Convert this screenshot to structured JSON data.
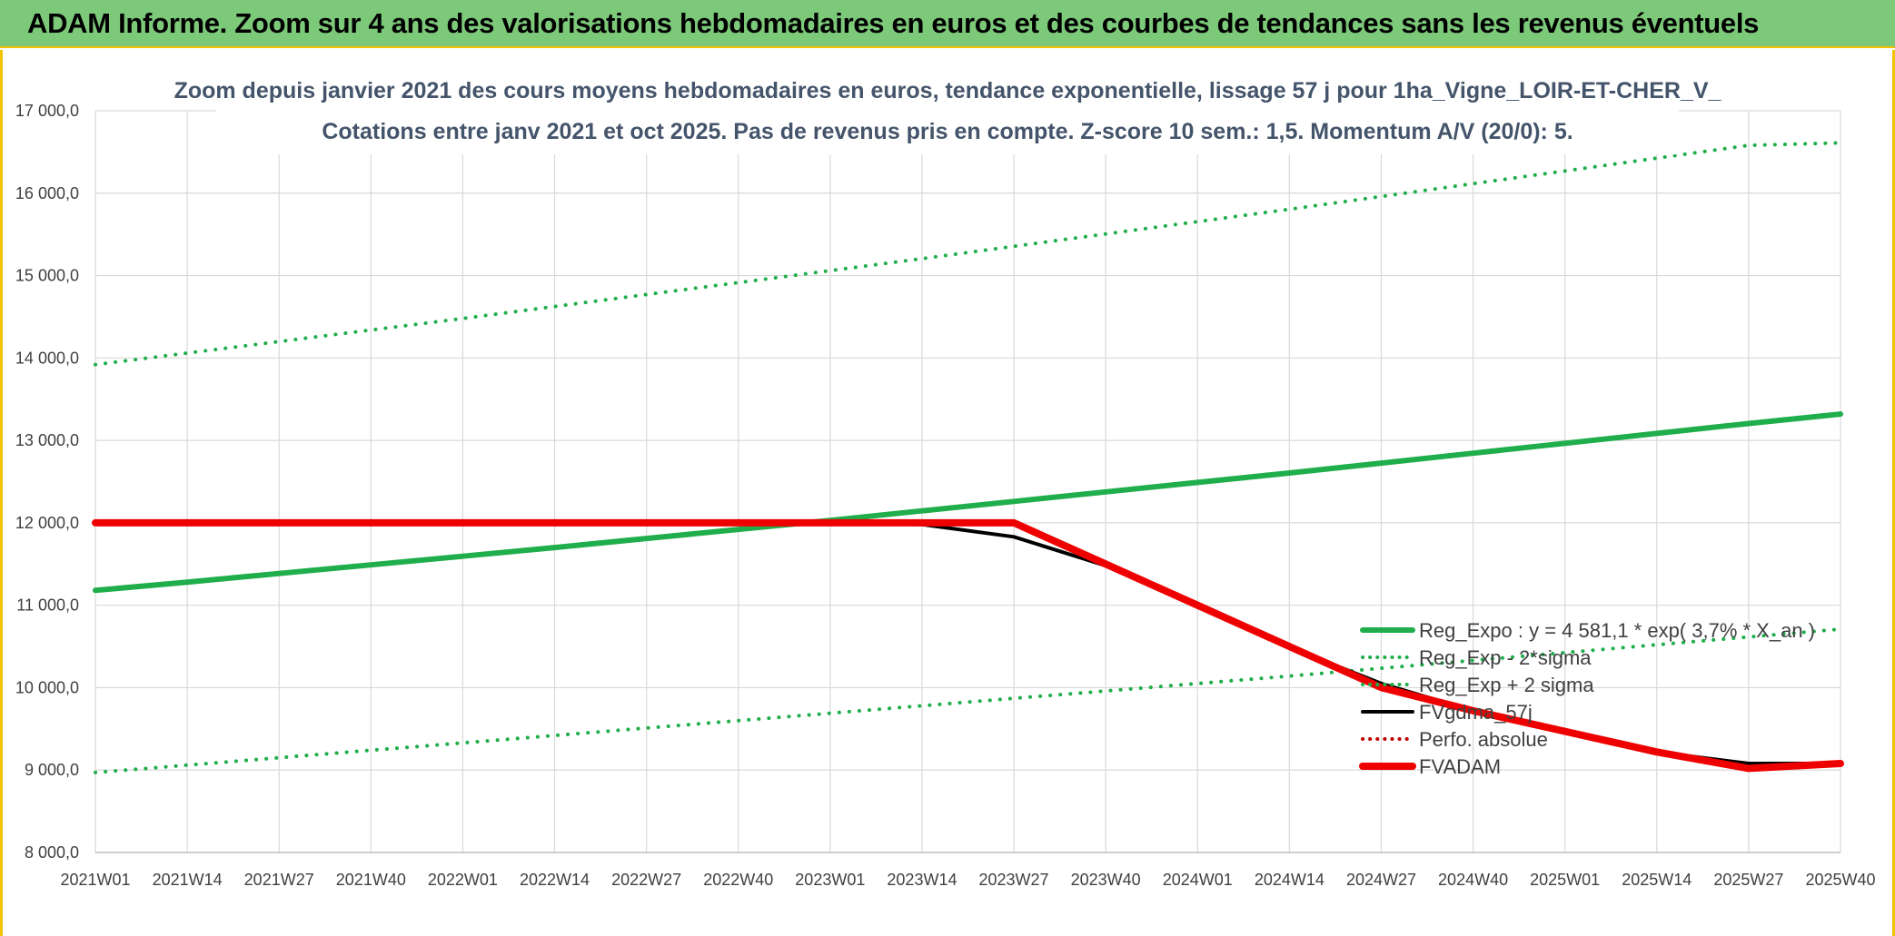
{
  "banner": {
    "title": "ADAM Informe. Zoom sur 4 ans des valorisations hebdomadaires en euros et des courbes de tendances sans les revenus éventuels"
  },
  "colors": {
    "banner_bg": "#7dc97a",
    "frame_accent": "#f2c200",
    "trend_green": "#1fae4b",
    "fvadam_red": "#ee0000",
    "fvgdma_black": "#000000",
    "grid": "#d9d9d9"
  },
  "chart_data": {
    "type": "line",
    "title": "Zoom depuis janvier 2021 des cours moyens hebdomadaires en euros, tendance exponentielle, lissage 57 j pour 1ha_Vigne_LOIR-ET-CHER_V_",
    "subtitle": "Cotations entre janv 2021 et oct 2025. Pas de revenus pris en compte. Z-score 10 sem.: 1,5. Momentum A/V (20/0): 5.",
    "xlabel": "",
    "ylabel": "",
    "ylim": [
      8000,
      17000
    ],
    "y_ticks": [
      "17 000,0",
      "16 000,0",
      "15 000,0",
      "14 000,0",
      "13 000,0",
      "12 000,0",
      "11 000,0",
      "10 000,0",
      "9 000,0",
      "8 000,0"
    ],
    "y_tick_values": [
      17000,
      16000,
      15000,
      14000,
      13000,
      12000,
      11000,
      10000,
      9000,
      8000
    ],
    "x_ticks": [
      "2021W01",
      "2021W14",
      "2021W27",
      "2021W40",
      "2022W01",
      "2022W14",
      "2022W27",
      "2022W40",
      "2023W01",
      "2023W14",
      "2023W27",
      "2023W40",
      "2024W01",
      "2024W14",
      "2024W27",
      "2024W40",
      "2025W01",
      "2025W14",
      "2025W27",
      "2025W40"
    ],
    "grid": true,
    "legend_position": "right",
    "series": [
      {
        "name": "Reg_Expo : y = 4 581,1 * exp( 3,7% * X_an )",
        "style": "solid",
        "color": "#1fae4b",
        "values": [
          11180,
          11280,
          11385,
          11490,
          11595,
          11700,
          11810,
          11920,
          12030,
          12145,
          12260,
          12375,
          12490,
          12605,
          12725,
          12845,
          12965,
          13085,
          13205,
          13320
        ]
      },
      {
        "name": "Reg_Exp - 2*sigma",
        "style": "dotted",
        "color": "#1fae4b",
        "values": [
          8970,
          9060,
          9150,
          9240,
          9330,
          9420,
          9510,
          9600,
          9690,
          9780,
          9870,
          9960,
          10050,
          10140,
          10235,
          10330,
          10425,
          10520,
          10615,
          10710
        ]
      },
      {
        "name": "Reg_Exp + 2 sigma",
        "style": "dotted",
        "color": "#1fae4b",
        "values": [
          13920,
          14060,
          14200,
          14340,
          14480,
          14625,
          14770,
          14915,
          15060,
          15205,
          15355,
          15505,
          15655,
          15805,
          15960,
          16115,
          16270,
          16425,
          16580,
          16610
        ]
      },
      {
        "name": "FVgdma_57j",
        "style": "solid-thin",
        "color": "#000000",
        "values": [
          12000,
          12000,
          12000,
          12000,
          12000,
          12000,
          12000,
          12000,
          12000,
          11980,
          11830,
          11480,
          10990,
          10490,
          10050,
          9720,
          9470,
          9220,
          9080,
          9080
        ]
      },
      {
        "name": "Perfo. absolue",
        "style": "dotted",
        "color": "#c00000",
        "values": []
      },
      {
        "name": "FVADAM",
        "style": "solid-thick",
        "color": "#ee0000",
        "values": [
          12000,
          12000,
          12000,
          12000,
          12000,
          12000,
          12000,
          12000,
          12000,
          12000,
          12000,
          11500,
          11000,
          10500,
          10000,
          9720,
          9470,
          9220,
          9020,
          9080
        ]
      }
    ]
  }
}
